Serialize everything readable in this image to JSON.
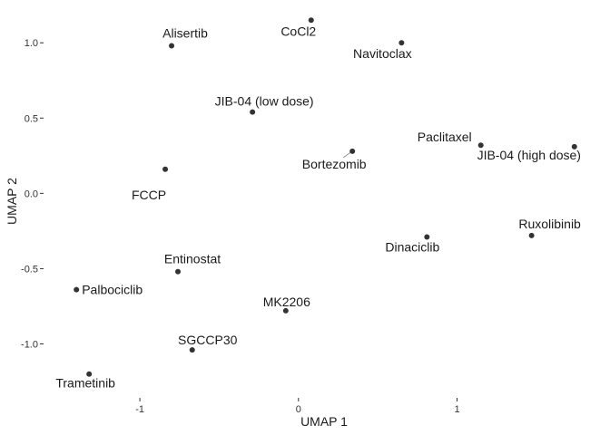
{
  "chart_data": {
    "type": "scatter",
    "xlabel": "UMAP 1",
    "ylabel": "UMAP 2",
    "xlim": [
      -1.55,
      1.85
    ],
    "ylim": [
      -1.28,
      1.2
    ],
    "xticks": [
      -1,
      0,
      1
    ],
    "xtick_labels": [
      "-1",
      "0",
      "1"
    ],
    "yticks": [
      -1.0,
      -0.5,
      0.0,
      0.5,
      1.0
    ],
    "ytick_labels": [
      "-1.0",
      "-0.5",
      "0.0",
      "0.5",
      "1.0"
    ],
    "grid": false,
    "point_color": "#333333",
    "points": [
      {
        "label": "CoCl2",
        "x": 0.08,
        "y": 1.15
      },
      {
        "label": "Navitoclax",
        "x": 0.65,
        "y": 1.0
      },
      {
        "label": "Alisertib",
        "x": -0.8,
        "y": 0.98
      },
      {
        "label": "JIB-04 (low dose)",
        "x": -0.29,
        "y": 0.54
      },
      {
        "label": "Bortezomib",
        "x": 0.34,
        "y": 0.28
      },
      {
        "label": "Paclitaxel",
        "x": 1.15,
        "y": 0.32
      },
      {
        "label": "JIB-04 (high dose)",
        "x": 1.74,
        "y": 0.31
      },
      {
        "label": "FCCP",
        "x": -0.84,
        "y": 0.16
      },
      {
        "label": "Ruxolibinib",
        "x": 1.47,
        "y": -0.28
      },
      {
        "label": "Dinaciclib",
        "x": 0.81,
        "y": -0.29
      },
      {
        "label": "Entinostat",
        "x": -0.76,
        "y": -0.52
      },
      {
        "label": "Palbociclib",
        "x": -1.4,
        "y": -0.64
      },
      {
        "label": "MK2206",
        "x": -0.08,
        "y": -0.78
      },
      {
        "label": "SGCCP30",
        "x": -0.67,
        "y": -1.04
      },
      {
        "label": "Trametinib",
        "x": -1.32,
        "y": -1.2
      }
    ]
  }
}
